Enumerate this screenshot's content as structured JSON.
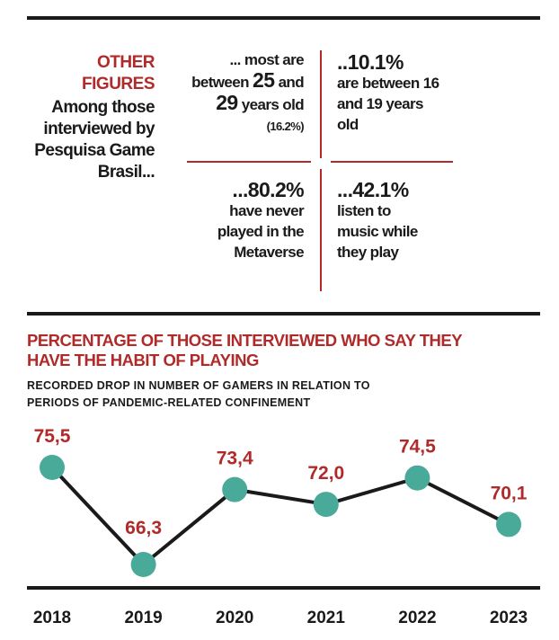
{
  "figures": {
    "kicker": "OTHER FIGURES",
    "lead": "Among those interviewed by Pesquisa Game Brasil...",
    "top_left": {
      "pre": "... most are between",
      "n1": "25",
      "mid": "and",
      "n2": "29",
      "post": "years old",
      "note": "(16.2%)"
    },
    "top_right": {
      "value": "..10.1%",
      "text": "are between 16 and 19 years old"
    },
    "bottom_left": {
      "value": "...80.2%",
      "text": "have never played in the Metaverse"
    },
    "bottom_right": {
      "value": "...42.1%",
      "text": "listen to music while they play"
    }
  },
  "chart_title": "PERCENTAGE OF THOSE INTERVIEWED WHO SAY THEY HAVE THE HABIT OF PLAYING",
  "chart_subtitle": "RECORDED DROP IN NUMBER OF GAMERS IN RELATION TO PERIODS OF PANDEMIC-RELATED CONFINEMENT",
  "colors": {
    "accent": "#b02a2a",
    "marker": "#4aaa9a",
    "ink": "#1a1a1a"
  },
  "chart_data": {
    "type": "line",
    "title": "PERCENTAGE OF THOSE INTERVIEWED WHO SAY THEY HAVE THE HABIT OF PLAYING",
    "subtitle": "RECORDED DROP IN NUMBER OF GAMERS IN RELATION TO PERIODS OF PANDEMIC-RELATED CONFINEMENT",
    "x": [
      "2018",
      "2019",
      "2020",
      "2021",
      "2022",
      "2023"
    ],
    "values": [
      75.5,
      66.3,
      73.4,
      72.0,
      74.5,
      70.1
    ],
    "data_labels": [
      "75,5",
      "66,3",
      "73,4",
      "72,0",
      "74,5",
      "70,1"
    ],
    "xlabel": "",
    "ylabel": "",
    "grid": false,
    "legend": "none"
  }
}
